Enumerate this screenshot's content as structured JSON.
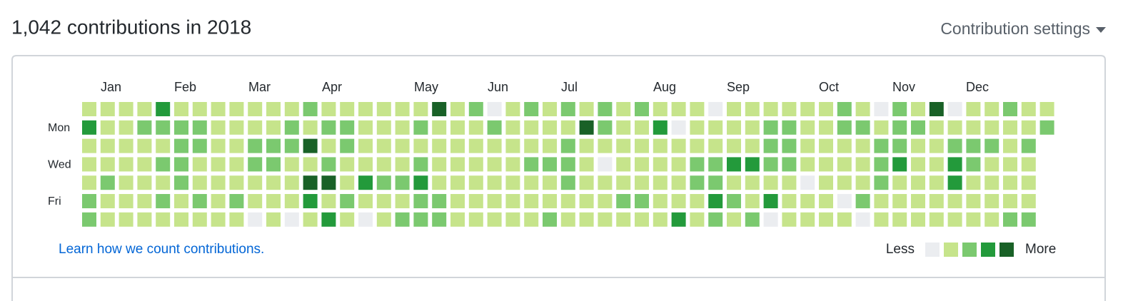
{
  "header": {
    "title": "1,042 contributions in 2018",
    "settings": "Contribution settings"
  },
  "months": [
    "Jan",
    "Feb",
    "Mar",
    "Apr",
    "May",
    "Jun",
    "Jul",
    "Aug",
    "Sep",
    "Oct",
    "Nov",
    "Dec"
  ],
  "days": [
    "Mon",
    "Wed",
    "Fri"
  ],
  "level_colors": [
    "#ebedf0",
    "#c6e48b",
    "#7bc96f",
    "#239a3b",
    "#196127"
  ],
  "grid": [
    [
      1,
      1,
      1,
      1,
      3,
      1,
      1,
      1,
      1,
      1,
      1,
      1,
      2,
      1,
      1,
      1,
      1,
      1,
      1,
      4,
      1,
      2,
      0,
      1,
      2,
      1,
      2,
      1,
      2,
      1,
      2,
      1,
      1,
      1,
      0,
      1,
      1,
      1,
      1,
      1,
      1,
      2,
      1,
      0,
      2,
      1,
      4,
      0,
      1,
      1,
      2,
      1,
      1
    ],
    [
      3,
      1,
      1,
      2,
      2,
      2,
      2,
      1,
      1,
      1,
      1,
      2,
      1,
      2,
      2,
      1,
      1,
      1,
      2,
      1,
      1,
      1,
      2,
      1,
      1,
      1,
      1,
      4,
      2,
      1,
      1,
      3,
      0,
      1,
      1,
      1,
      1,
      2,
      2,
      1,
      1,
      2,
      2,
      1,
      2,
      2,
      1,
      1,
      1,
      1,
      1,
      1,
      2
    ],
    [
      1,
      1,
      1,
      1,
      1,
      2,
      2,
      1,
      1,
      2,
      2,
      2,
      4,
      1,
      2,
      1,
      1,
      1,
      1,
      1,
      1,
      1,
      1,
      1,
      1,
      1,
      2,
      1,
      1,
      1,
      1,
      1,
      1,
      1,
      1,
      1,
      1,
      2,
      2,
      1,
      1,
      1,
      1,
      2,
      2,
      1,
      1,
      2,
      2,
      2,
      1,
      2
    ],
    [
      1,
      1,
      1,
      1,
      2,
      2,
      1,
      1,
      1,
      2,
      2,
      1,
      1,
      2,
      1,
      1,
      1,
      1,
      2,
      1,
      1,
      1,
      1,
      1,
      2,
      2,
      2,
      1,
      0,
      1,
      1,
      1,
      1,
      2,
      2,
      3,
      3,
      2,
      2,
      1,
      1,
      1,
      1,
      2,
      3,
      1,
      1,
      3,
      2,
      1,
      1,
      1
    ],
    [
      1,
      2,
      1,
      1,
      1,
      2,
      1,
      1,
      1,
      1,
      1,
      1,
      4,
      4,
      1,
      3,
      2,
      2,
      3,
      1,
      1,
      1,
      1,
      1,
      1,
      1,
      2,
      1,
      1,
      1,
      1,
      1,
      1,
      2,
      2,
      1,
      1,
      1,
      1,
      0,
      1,
      1,
      1,
      2,
      1,
      1,
      1,
      3,
      1,
      1,
      1,
      1
    ],
    [
      2,
      1,
      1,
      1,
      2,
      1,
      2,
      1,
      2,
      1,
      1,
      1,
      3,
      1,
      2,
      1,
      1,
      1,
      2,
      2,
      1,
      1,
      1,
      1,
      1,
      1,
      1,
      1,
      1,
      2,
      2,
      1,
      1,
      1,
      3,
      2,
      1,
      3,
      1,
      1,
      1,
      0,
      2,
      1,
      1,
      1,
      1,
      1,
      1,
      1,
      1,
      1
    ],
    [
      2,
      1,
      1,
      1,
      1,
      1,
      1,
      1,
      1,
      0,
      1,
      0,
      1,
      3,
      1,
      0,
      1,
      2,
      2,
      2,
      1,
      1,
      1,
      1,
      1,
      2,
      1,
      1,
      1,
      1,
      1,
      1,
      3,
      1,
      2,
      1,
      2,
      0,
      1,
      1,
      1,
      1,
      0,
      1,
      1,
      1,
      1,
      1,
      1,
      1,
      2,
      2
    ]
  ],
  "link": "Learn how we count contributions.",
  "legend": {
    "less": "Less",
    "more": "More"
  }
}
